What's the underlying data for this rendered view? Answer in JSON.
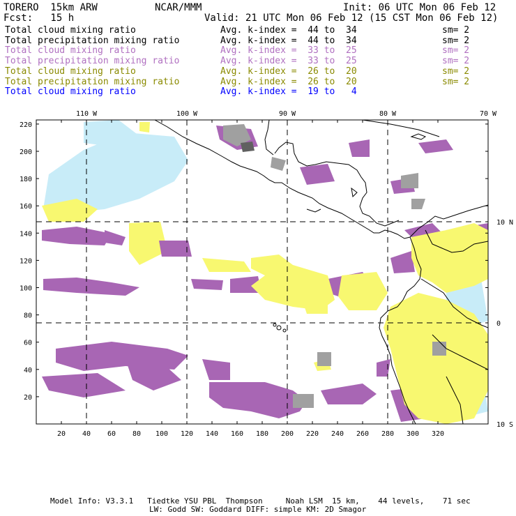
{
  "header": {
    "model": "TORERO  15km ARW",
    "org": "NCAR/MMM",
    "init": "Init: 06 UTC Mon 06 Feb 12",
    "fcst": "Fcst:   15 h",
    "valid": "Valid: 21 UTC Mon 06 Feb 12 (15 CST Mon 06 Feb 12)"
  },
  "legend": [
    {
      "field": "Total cloud mixing ratio",
      "kindex": "Avg. k-index =  44 to  34",
      "sm": "sm= 2",
      "color": "#000000"
    },
    {
      "field": "Total precipitation mixing ratio",
      "kindex": "Avg. k-index =  44 to  34",
      "sm": "sm= 2",
      "color": "#000000"
    },
    {
      "field": "Total cloud mixing ratio",
      "kindex": "Avg. k-index =  33 to  25",
      "sm": "sm= 2",
      "color": "#b070c0"
    },
    {
      "field": "Total precipitation mixing ratio",
      "kindex": "Avg. k-index =  33 to  25",
      "sm": "sm= 2",
      "color": "#b070c0"
    },
    {
      "field": "Total cloud mixing ratio",
      "kindex": "Avg. k-index =  26 to  20",
      "sm": "sm= 2",
      "color": "#8a8a00"
    },
    {
      "field": "Total precipitation mixing ratio",
      "kindex": "Avg. k-index =  26 to  20",
      "sm": "sm= 2",
      "color": "#8a8a00"
    },
    {
      "field": "Total cloud mixing ratio",
      "kindex": "Avg. k-index =  19 to   4",
      "sm": "",
      "color": "#0000ff"
    }
  ],
  "map": {
    "lon_labels": [
      "110 W",
      "100 W",
      "90 W",
      "80 W",
      "70 W"
    ],
    "lat_labels": [
      "10 N",
      "0",
      "10 S"
    ],
    "x_ticks": [
      "20",
      "40",
      "60",
      "80",
      "100",
      "120",
      "140",
      "160",
      "180",
      "200",
      "220",
      "240",
      "260",
      "280",
      "300",
      "320"
    ],
    "y_ticks": [
      "220",
      "200",
      "180",
      "160",
      "140",
      "120",
      "100",
      "80",
      "60",
      "40",
      "20"
    ],
    "colors": {
      "purple": "#a866b4",
      "yellow": "#f8f870",
      "gray": "#a0a0a0",
      "lightblue": "#c8ecf8",
      "darkgray": "#606060"
    }
  },
  "footer": {
    "line1": "Model Info: V3.3.1   Tiedtke YSU PBL  Thompson     Noah LSM  15 km,    44 levels,    71 sec",
    "line2": "LW: Godd SW: Goddard DIFF: simple KM: 2D Smagor"
  }
}
